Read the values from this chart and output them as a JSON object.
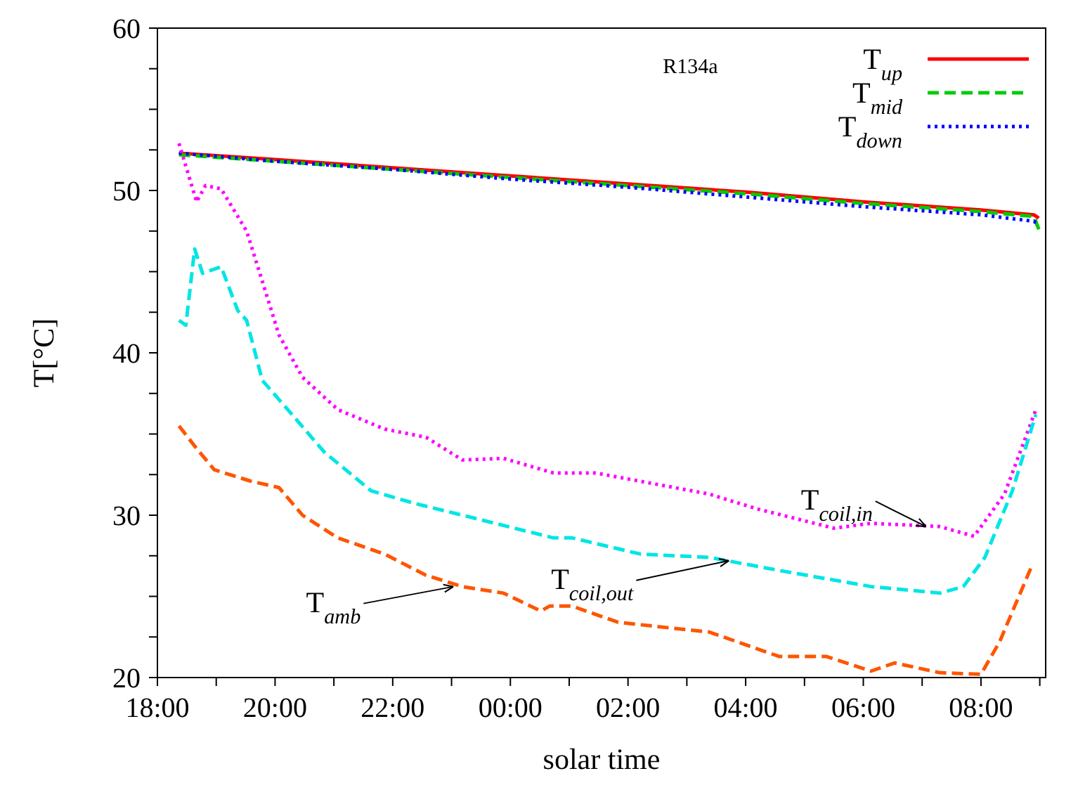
{
  "chart_data": {
    "type": "line",
    "xlabel": "solar time",
    "ylabel": "T[°C]",
    "xlim": [
      "2000-01-01T18:00",
      "2000-01-02T09:06"
    ],
    "ylim": [
      20,
      60
    ],
    "xticks": [
      {
        "value": "2000-01-01T18:00",
        "label": "18:00"
      },
      {
        "value": "2000-01-01T19:00",
        "label": null
      },
      {
        "value": "2000-01-01T20:00",
        "label": "20:00"
      },
      {
        "value": "2000-01-01T21:00",
        "label": null
      },
      {
        "value": "2000-01-01T22:00",
        "label": "22:00"
      },
      {
        "value": "2000-01-01T23:00",
        "label": null
      },
      {
        "value": "2000-01-02T00:00",
        "label": "00:00"
      },
      {
        "value": "2000-01-02T01:00",
        "label": null
      },
      {
        "value": "2000-01-02T02:00",
        "label": "02:00"
      },
      {
        "value": "2000-01-02T03:00",
        "label": null
      },
      {
        "value": "2000-01-02T04:00",
        "label": "04:00"
      },
      {
        "value": "2000-01-02T05:00",
        "label": null
      },
      {
        "value": "2000-01-02T06:00",
        "label": "06:00"
      },
      {
        "value": "2000-01-02T07:00",
        "label": null
      },
      {
        "value": "2000-01-02T08:00",
        "label": "08:00"
      },
      {
        "value": "2000-01-02T09:00",
        "label": null
      }
    ],
    "yticks": [
      20,
      {
        "value": 22.5,
        "label": null
      },
      {
        "value": 25,
        "label": null
      },
      {
        "value": 27.5,
        "label": null
      },
      30,
      {
        "value": 32.5,
        "label": null
      },
      {
        "value": 35,
        "label": null
      },
      {
        "value": 37.5,
        "label": null
      },
      40,
      {
        "value": 42.5,
        "label": null
      },
      {
        "value": 45,
        "label": null
      },
      {
        "value": 47.5,
        "label": null
      },
      50,
      {
        "value": 52.5,
        "label": null
      },
      {
        "value": 55,
        "label": null
      },
      {
        "value": 57.5,
        "label": null
      },
      60
    ],
    "legend": "top right",
    "annotations": [
      "R134a",
      {
        "text": "T$_{coil,in}$",
        "x": "2000-01-02T07:04",
        "y": 29.3
      },
      {
        "text": "T$_{coil,out}$",
        "x": "2000-01-02T03:43",
        "y": 27.2
      },
      {
        "text": "T$_{amb}$",
        "x": "2000-01-01T23:02",
        "y": 25.6
      }
    ],
    "series": [
      {
        "name": "T$_{up}$",
        "color": "#ff0000",
        "line_style": "solid",
        "x": [
          "2000-01-01T18:22",
          "2000-01-01T20:00",
          "2000-01-01T22:00",
          "2000-01-02T00:00",
          "2000-01-02T02:00",
          "2000-01-02T04:00",
          "2000-01-02T06:00",
          "2000-01-02T08:00",
          "2000-01-02T08:54",
          "2000-01-02T08:59"
        ],
        "values": [
          52.3,
          51.9,
          51.4,
          50.9,
          50.4,
          49.9,
          49.3,
          48.8,
          48.5,
          48.3
        ]
      },
      {
        "name": "T$_{mid}$",
        "color": "#00cc00",
        "line_style": "dashed",
        "x": [
          "2000-01-01T18:22",
          "2000-01-01T20:00",
          "2000-01-01T22:00",
          "2000-01-02T00:00",
          "2000-01-02T02:00",
          "2000-01-02T04:00",
          "2000-01-02T06:00",
          "2000-01-02T08:00",
          "2000-01-02T08:54",
          "2000-01-02T08:59"
        ],
        "values": [
          52.2,
          51.8,
          51.3,
          50.8,
          50.3,
          49.8,
          49.2,
          48.7,
          48.4,
          47.6
        ]
      },
      {
        "name": "T$_{down}$",
        "color": "#0000ff",
        "line_style": "dotted",
        "x": [
          "2000-01-01T18:22",
          "2000-01-01T20:00",
          "2000-01-01T22:00",
          "2000-01-02T00:00",
          "2000-01-02T02:00",
          "2000-01-02T04:00",
          "2000-01-02T06:00",
          "2000-01-02T08:00",
          "2000-01-02T08:54",
          "2000-01-02T08:59"
        ],
        "values": [
          52.3,
          51.8,
          51.3,
          50.7,
          50.2,
          49.6,
          49.0,
          48.5,
          48.1,
          47.9
        ]
      },
      {
        "color": "#ff00ff",
        "line_style": "dotted",
        "x": [
          "2000-01-01T18:22",
          "2000-01-01T18:40",
          "2000-01-01T18:49",
          "2000-01-01T19:05",
          "2000-01-01T19:31",
          "2000-01-01T19:46",
          "2000-01-01T20:04",
          "2000-01-01T20:28",
          "2000-01-01T21:04",
          "2000-01-01T21:52",
          "2000-01-01T22:34",
          "2000-01-01T23:11",
          "2000-01-01T23:53",
          "2000-01-02T00:44",
          "2000-01-02T01:27",
          "2000-01-02T03:23",
          "2000-01-02T04:11",
          "2000-01-02T05:30",
          "2000-01-02T06:08",
          "2000-01-02T07:18",
          "2000-01-02T07:53",
          "2000-01-02T08:24",
          "2000-01-02T08:56"
        ],
        "values": [
          52.9,
          49.3,
          50.3,
          50.1,
          47.5,
          44.6,
          41.1,
          38.5,
          36.5,
          35.3,
          34.8,
          33.4,
          33.5,
          32.6,
          32.6,
          31.3,
          30.4,
          29.2,
          29.5,
          29.3,
          28.7,
          31.3,
          36.5
        ]
      },
      {
        "color": "#00e5e5",
        "line_style": "dashed",
        "x": [
          "2000-01-01T18:22",
          "2000-01-01T18:29",
          "2000-01-01T18:38",
          "2000-01-01T18:46",
          "2000-01-01T19:05",
          "2000-01-01T19:22",
          "2000-01-01T19:31",
          "2000-01-01T19:47",
          "2000-01-01T20:13",
          "2000-01-01T20:50",
          "2000-01-01T21:38",
          "2000-01-01T22:24",
          "2000-01-01T23:11",
          "2000-01-02T00:44",
          "2000-01-02T01:03",
          "2000-01-02T02:13",
          "2000-01-02T03:23",
          "2000-01-02T04:34",
          "2000-01-02T06:08",
          "2000-01-02T07:18",
          "2000-01-02T07:42",
          "2000-01-02T08:04",
          "2000-01-02T08:32",
          "2000-01-02T08:56"
        ],
        "values": [
          42.0,
          41.7,
          46.4,
          44.9,
          45.3,
          42.6,
          42.0,
          38.3,
          36.5,
          33.9,
          31.5,
          30.7,
          30.0,
          28.6,
          28.6,
          27.6,
          27.4,
          26.6,
          25.6,
          25.2,
          25.6,
          27.4,
          31.5,
          36.2
        ]
      },
      {
        "color": "#ff5500",
        "line_style": "dashed",
        "x": [
          "2000-01-01T18:22",
          "2000-01-01T18:40",
          "2000-01-01T18:58",
          "2000-01-01T19:35",
          "2000-01-01T20:04",
          "2000-01-01T20:28",
          "2000-01-01T21:04",
          "2000-01-01T21:52",
          "2000-01-01T22:34",
          "2000-01-01T23:11",
          "2000-01-01T23:53",
          "2000-01-02T00:31",
          "2000-01-02T00:40",
          "2000-01-02T01:03",
          "2000-01-02T01:50",
          "2000-01-02T03:23",
          "2000-01-02T04:34",
          "2000-01-02T05:22",
          "2000-01-02T06:08",
          "2000-01-02T06:32",
          "2000-01-02T07:18",
          "2000-01-02T08:00",
          "2000-01-02T08:19",
          "2000-01-02T08:52"
        ],
        "values": [
          35.5,
          34.1,
          32.8,
          32.1,
          31.7,
          30.0,
          28.6,
          27.6,
          26.3,
          25.6,
          25.2,
          24.1,
          24.4,
          24.4,
          23.4,
          22.8,
          21.3,
          21.3,
          20.4,
          20.9,
          20.3,
          20.2,
          22.2,
          26.9
        ]
      }
    ]
  }
}
